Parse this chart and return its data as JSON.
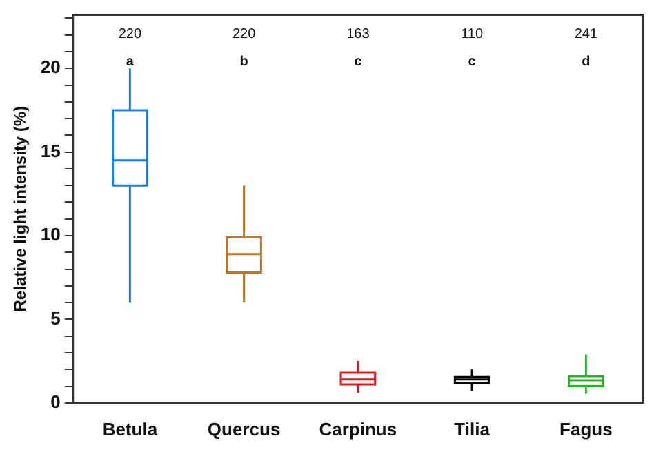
{
  "chart_data": {
    "type": "box",
    "ylabel": "Relative light intensity (%)",
    "categories": [
      "Betula",
      "Quercus",
      "Carpinus",
      "Tilia",
      "Fagus"
    ],
    "colors": [
      "#1e7fd6",
      "#c0741f",
      "#e8141c",
      "#000000",
      "#22b520"
    ],
    "boxes": [
      {
        "low": 6,
        "q1": 13,
        "median": 14.5,
        "q3": 17.5,
        "high": 20
      },
      {
        "low": 6,
        "q1": 7.8,
        "median": 8.9,
        "q3": 9.9,
        "high": 13
      },
      {
        "low": 0.6,
        "q1": 1.1,
        "median": 1.4,
        "q3": 1.8,
        "high": 2.5
      },
      {
        "low": 0.7,
        "q1": 1.2,
        "median": 1.4,
        "q3": 1.55,
        "high": 2
      },
      {
        "low": 0.55,
        "q1": 1,
        "median": 1.35,
        "q3": 1.6,
        "high": 2.9
      }
    ],
    "ylim": [
      0,
      23.2
    ],
    "yticks": [
      0,
      {
        "value": 1,
        "label": null
      },
      {
        "value": 2,
        "label": null
      },
      {
        "value": 3,
        "label": null
      },
      {
        "value": 4,
        "label": null
      },
      5,
      {
        "value": 6,
        "label": null
      },
      {
        "value": 7,
        "label": null
      },
      {
        "value": 8,
        "label": null
      },
      {
        "value": 9,
        "label": null
      },
      10,
      {
        "value": 11,
        "label": null
      },
      {
        "value": 12,
        "label": null
      },
      {
        "value": 13,
        "label": null
      },
      {
        "value": 14,
        "label": null
      },
      15,
      {
        "value": 16,
        "label": null
      },
      {
        "value": 17,
        "label": null
      },
      {
        "value": 18,
        "label": null
      },
      {
        "value": 19,
        "label": null
      },
      20,
      {
        "value": 21,
        "label": null
      },
      {
        "value": 22,
        "label": null
      },
      {
        "value": 23,
        "label": null
      }
    ],
    "annotations": [
      "220",
      "220",
      "163",
      "110",
      "241",
      "a",
      "b",
      "c",
      "c",
      "d"
    ]
  }
}
